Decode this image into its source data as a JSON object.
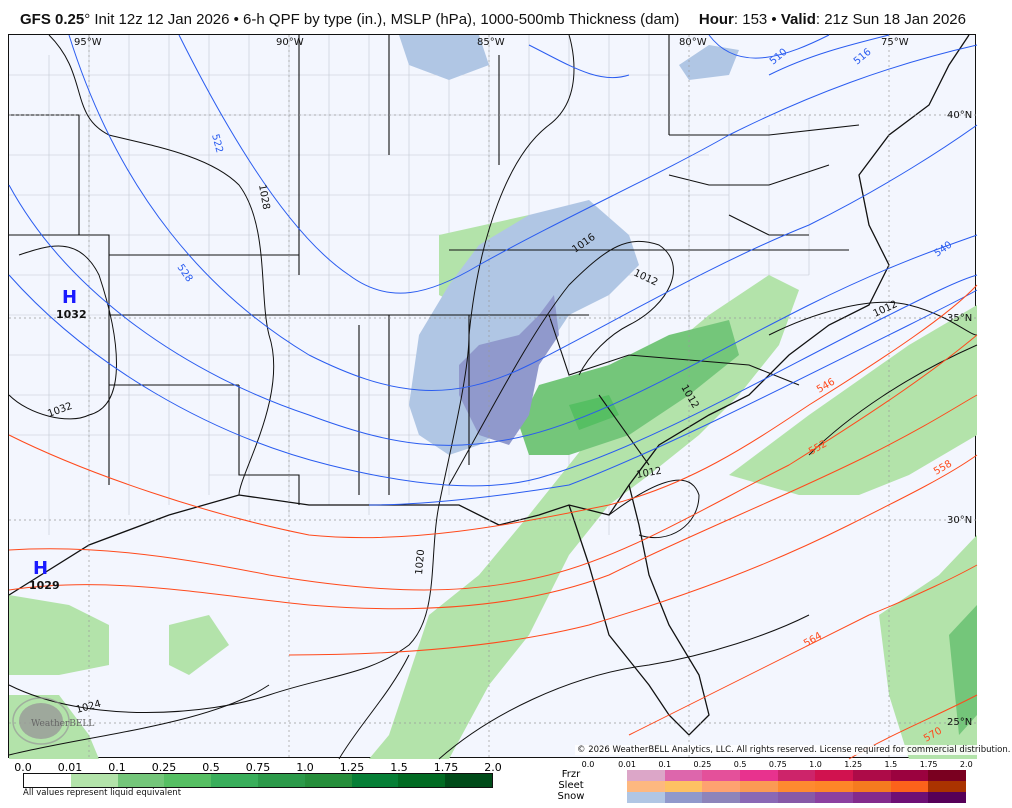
{
  "header": {
    "model": "GFS 0.25",
    "degree": "°",
    "description": " Init 12z 12 Jan 2026 • 6-h QPF by type (in.), MSLP (hPa), 1000-500mb Thickness (dam)",
    "hour_label": "Hour",
    "hour_value": ": 153 • ",
    "valid_label": "Valid",
    "valid_value": ": 21z Sun 18 Jan 2026"
  },
  "map": {
    "longitude_labels": [
      "95°W",
      "90°W",
      "85°W",
      "80°W",
      "75°W"
    ],
    "latitude_labels": [
      "40°N",
      "35°N",
      "30°N",
      "25°N"
    ],
    "pressure_centers": [
      {
        "symbol": "H",
        "value": "1032"
      },
      {
        "symbol": "H",
        "value": "1029"
      }
    ],
    "isobar_labels": [
      "1028",
      "1032",
      "1024",
      "1020",
      "1016",
      "1012",
      "1012",
      "1012",
      "1012"
    ],
    "thickness_labels": [
      "522",
      "528",
      "510",
      "516",
      "540",
      "546",
      "552",
      "558",
      "564",
      "570"
    ],
    "colors": {
      "background": "#f3f6fe",
      "isobar": "#111111",
      "thickness_cold": "#2a5cf0",
      "thickness_warm": "#ff4a1c",
      "county_border": "#b8bcc6"
    },
    "watermark": "WeatherBELL"
  },
  "copyright": "© 2026 WeatherBELL Analytics, LLC. All rights reserved. License required for commercial distribution.",
  "rain_legend": {
    "ticks": [
      "0.0",
      "0.01",
      "0.1",
      "0.25",
      "0.5",
      "0.75",
      "1.0",
      "1.25",
      "1.5",
      "1.75",
      "2.0"
    ],
    "colors": [
      "#ffffff",
      "#b3e3aa",
      "#74c67a",
      "#56bf63",
      "#39ae5b",
      "#2c9a4a",
      "#268e3b",
      "#067f36",
      "#016b23",
      "#004b19"
    ],
    "note": "All values represent liquid equivalent"
  },
  "ptype_legend": {
    "ticks": [
      "0.0",
      "0.01",
      "0.1",
      "0.25",
      "0.5",
      "0.75",
      "1.0",
      "1.25",
      "1.5",
      "1.75",
      "2.0"
    ],
    "rows": [
      {
        "label": "Frzr",
        "colors": [
          "#dca6c8",
          "#dd66ac",
          "#e4509a",
          "#e8328e",
          "#cd246a",
          "#d1124f",
          "#ad0b48",
          "#9b023f",
          "#7a0020"
        ]
      },
      {
        "label": "Sleet",
        "colors": [
          "#fdb880",
          "#fec163",
          "#fea270",
          "#fb9a54",
          "#fe8a30",
          "#fe8628",
          "#f57b1f",
          "#fc621b",
          "#aa3300"
        ]
      },
      {
        "label": "Snow",
        "colors": [
          "#b0c6e4",
          "#9099cc",
          "#8d84ba",
          "#8a68b5",
          "#8759a7",
          "#8c40a0",
          "#832a8c",
          "#6e0f75",
          "#560058"
        ]
      }
    ]
  }
}
